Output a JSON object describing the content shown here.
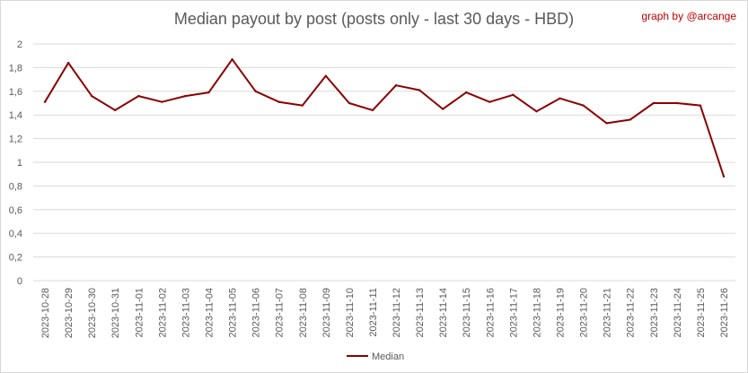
{
  "credit": "graph by @arcange",
  "chart_data": {
    "type": "line",
    "title": "Median payout by post (posts only - last 30 days - HBD)",
    "xlabel": "",
    "ylabel": "",
    "ylim": [
      0,
      2
    ],
    "yticks": [
      "0",
      "0,2",
      "0,4",
      "0,6",
      "0,8",
      "1",
      "1,2",
      "1,4",
      "1,6",
      "1,8",
      "2"
    ],
    "grid": true,
    "legend_position": "bottom",
    "categories": [
      "2023-10-28",
      "2023-10-29",
      "2023-10-30",
      "2023-10-31",
      "2023-11-01",
      "2023-11-02",
      "2023-11-03",
      "2023-11-04",
      "2023-11-05",
      "2023-11-06",
      "2023-11-07",
      "2023-11-08",
      "2023-11-09",
      "2023-11-10",
      "2023-11-11",
      "2023-11-12",
      "2023-11-13",
      "2023-11-14",
      "2023-11-15",
      "2023-11-16",
      "2023-11-17",
      "2023-11-18",
      "2023-11-19",
      "2023-11-20",
      "2023-11-21",
      "2023-11-22",
      "2023-11-23",
      "2023-11-24",
      "2023-11-25",
      "2023-11-26"
    ],
    "series": [
      {
        "name": "Median",
        "color": "#8b0000",
        "values": [
          1.51,
          1.84,
          1.56,
          1.44,
          1.56,
          1.51,
          1.56,
          1.59,
          1.87,
          1.6,
          1.51,
          1.48,
          1.73,
          1.5,
          1.44,
          1.65,
          1.61,
          1.45,
          1.59,
          1.51,
          1.57,
          1.43,
          1.54,
          1.48,
          1.33,
          1.36,
          1.5,
          1.5,
          1.48,
          0.88
        ]
      }
    ]
  }
}
